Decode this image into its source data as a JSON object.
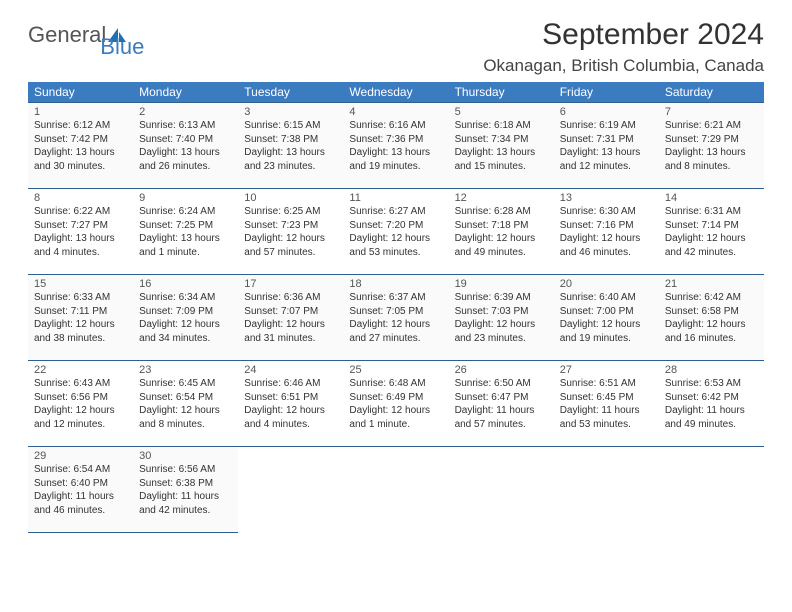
{
  "logo": {
    "word1": "General",
    "word2": "Blue",
    "icon_color": "#1f6fb2"
  },
  "title": "September 2024",
  "location": "Okanagan, British Columbia, Canada",
  "colors": {
    "header_bg": "#3b7bbf",
    "header_text": "#ffffff",
    "cell_border": "#2f5f8f",
    "text": "#333333",
    "logo_gray": "#555555",
    "logo_blue": "#3b7bbf"
  },
  "fonts": {
    "title_size": 30,
    "location_size": 17,
    "dayhead_size": 12,
    "cell_size": 10
  },
  "day_headers": [
    "Sunday",
    "Monday",
    "Tuesday",
    "Wednesday",
    "Thursday",
    "Friday",
    "Saturday"
  ],
  "weeks": [
    [
      {
        "n": "1",
        "sr": "Sunrise: 6:12 AM",
        "ss": "Sunset: 7:42 PM",
        "d1": "Daylight: 13 hours",
        "d2": "and 30 minutes."
      },
      {
        "n": "2",
        "sr": "Sunrise: 6:13 AM",
        "ss": "Sunset: 7:40 PM",
        "d1": "Daylight: 13 hours",
        "d2": "and 26 minutes."
      },
      {
        "n": "3",
        "sr": "Sunrise: 6:15 AM",
        "ss": "Sunset: 7:38 PM",
        "d1": "Daylight: 13 hours",
        "d2": "and 23 minutes."
      },
      {
        "n": "4",
        "sr": "Sunrise: 6:16 AM",
        "ss": "Sunset: 7:36 PM",
        "d1": "Daylight: 13 hours",
        "d2": "and 19 minutes."
      },
      {
        "n": "5",
        "sr": "Sunrise: 6:18 AM",
        "ss": "Sunset: 7:34 PM",
        "d1": "Daylight: 13 hours",
        "d2": "and 15 minutes."
      },
      {
        "n": "6",
        "sr": "Sunrise: 6:19 AM",
        "ss": "Sunset: 7:31 PM",
        "d1": "Daylight: 13 hours",
        "d2": "and 12 minutes."
      },
      {
        "n": "7",
        "sr": "Sunrise: 6:21 AM",
        "ss": "Sunset: 7:29 PM",
        "d1": "Daylight: 13 hours",
        "d2": "and 8 minutes."
      }
    ],
    [
      {
        "n": "8",
        "sr": "Sunrise: 6:22 AM",
        "ss": "Sunset: 7:27 PM",
        "d1": "Daylight: 13 hours",
        "d2": "and 4 minutes."
      },
      {
        "n": "9",
        "sr": "Sunrise: 6:24 AM",
        "ss": "Sunset: 7:25 PM",
        "d1": "Daylight: 13 hours",
        "d2": "and 1 minute."
      },
      {
        "n": "10",
        "sr": "Sunrise: 6:25 AM",
        "ss": "Sunset: 7:23 PM",
        "d1": "Daylight: 12 hours",
        "d2": "and 57 minutes."
      },
      {
        "n": "11",
        "sr": "Sunrise: 6:27 AM",
        "ss": "Sunset: 7:20 PM",
        "d1": "Daylight: 12 hours",
        "d2": "and 53 minutes."
      },
      {
        "n": "12",
        "sr": "Sunrise: 6:28 AM",
        "ss": "Sunset: 7:18 PM",
        "d1": "Daylight: 12 hours",
        "d2": "and 49 minutes."
      },
      {
        "n": "13",
        "sr": "Sunrise: 6:30 AM",
        "ss": "Sunset: 7:16 PM",
        "d1": "Daylight: 12 hours",
        "d2": "and 46 minutes."
      },
      {
        "n": "14",
        "sr": "Sunrise: 6:31 AM",
        "ss": "Sunset: 7:14 PM",
        "d1": "Daylight: 12 hours",
        "d2": "and 42 minutes."
      }
    ],
    [
      {
        "n": "15",
        "sr": "Sunrise: 6:33 AM",
        "ss": "Sunset: 7:11 PM",
        "d1": "Daylight: 12 hours",
        "d2": "and 38 minutes."
      },
      {
        "n": "16",
        "sr": "Sunrise: 6:34 AM",
        "ss": "Sunset: 7:09 PM",
        "d1": "Daylight: 12 hours",
        "d2": "and 34 minutes."
      },
      {
        "n": "17",
        "sr": "Sunrise: 6:36 AM",
        "ss": "Sunset: 7:07 PM",
        "d1": "Daylight: 12 hours",
        "d2": "and 31 minutes."
      },
      {
        "n": "18",
        "sr": "Sunrise: 6:37 AM",
        "ss": "Sunset: 7:05 PM",
        "d1": "Daylight: 12 hours",
        "d2": "and 27 minutes."
      },
      {
        "n": "19",
        "sr": "Sunrise: 6:39 AM",
        "ss": "Sunset: 7:03 PM",
        "d1": "Daylight: 12 hours",
        "d2": "and 23 minutes."
      },
      {
        "n": "20",
        "sr": "Sunrise: 6:40 AM",
        "ss": "Sunset: 7:00 PM",
        "d1": "Daylight: 12 hours",
        "d2": "and 19 minutes."
      },
      {
        "n": "21",
        "sr": "Sunrise: 6:42 AM",
        "ss": "Sunset: 6:58 PM",
        "d1": "Daylight: 12 hours",
        "d2": "and 16 minutes."
      }
    ],
    [
      {
        "n": "22",
        "sr": "Sunrise: 6:43 AM",
        "ss": "Sunset: 6:56 PM",
        "d1": "Daylight: 12 hours",
        "d2": "and 12 minutes."
      },
      {
        "n": "23",
        "sr": "Sunrise: 6:45 AM",
        "ss": "Sunset: 6:54 PM",
        "d1": "Daylight: 12 hours",
        "d2": "and 8 minutes."
      },
      {
        "n": "24",
        "sr": "Sunrise: 6:46 AM",
        "ss": "Sunset: 6:51 PM",
        "d1": "Daylight: 12 hours",
        "d2": "and 4 minutes."
      },
      {
        "n": "25",
        "sr": "Sunrise: 6:48 AM",
        "ss": "Sunset: 6:49 PM",
        "d1": "Daylight: 12 hours",
        "d2": "and 1 minute."
      },
      {
        "n": "26",
        "sr": "Sunrise: 6:50 AM",
        "ss": "Sunset: 6:47 PM",
        "d1": "Daylight: 11 hours",
        "d2": "and 57 minutes."
      },
      {
        "n": "27",
        "sr": "Sunrise: 6:51 AM",
        "ss": "Sunset: 6:45 PM",
        "d1": "Daylight: 11 hours",
        "d2": "and 53 minutes."
      },
      {
        "n": "28",
        "sr": "Sunrise: 6:53 AM",
        "ss": "Sunset: 6:42 PM",
        "d1": "Daylight: 11 hours",
        "d2": "and 49 minutes."
      }
    ],
    [
      {
        "n": "29",
        "sr": "Sunrise: 6:54 AM",
        "ss": "Sunset: 6:40 PM",
        "d1": "Daylight: 11 hours",
        "d2": "and 46 minutes."
      },
      {
        "n": "30",
        "sr": "Sunrise: 6:56 AM",
        "ss": "Sunset: 6:38 PM",
        "d1": "Daylight: 11 hours",
        "d2": "and 42 minutes."
      },
      null,
      null,
      null,
      null,
      null
    ]
  ]
}
